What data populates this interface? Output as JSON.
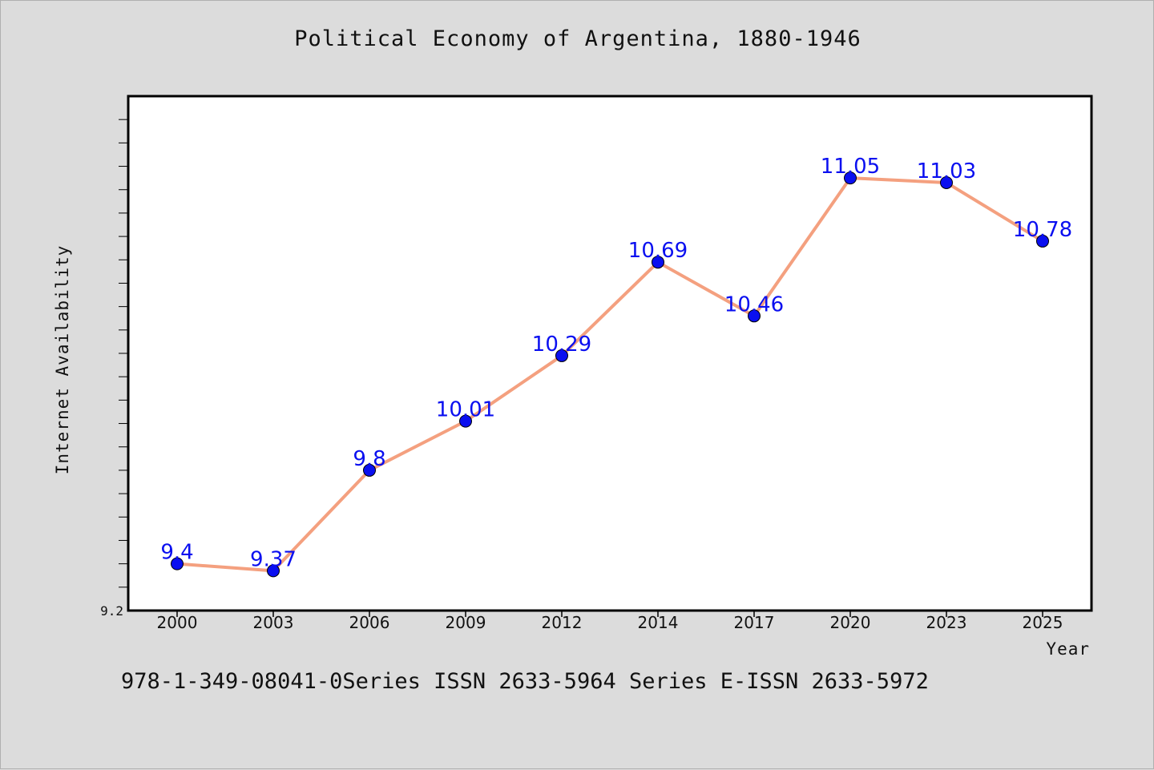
{
  "title": "Political Economy of Argentina, 1880-1946",
  "footer": "978-1-349-08041-0Series ISSN 2633-5964 Series E-ISSN 2633-5972",
  "colors": {
    "line": "#f4a07f",
    "marker": "#0a0ff0",
    "label": "#0a0ff0",
    "plot_bg": "#ffffff",
    "figure_bg": "#dcdcdc"
  },
  "chart_data": {
    "type": "line",
    "title": "Political Economy of Argentina, 1880-1946",
    "xlabel": "Year",
    "ylabel": "Internet Availability",
    "categories": [
      "2000",
      "2003",
      "2006",
      "2009",
      "2012",
      "2014",
      "2017",
      "2020",
      "2023",
      "2025"
    ],
    "series": [
      {
        "values": [
          9.4,
          9.37,
          9.8,
          10.01,
          10.29,
          10.69,
          10.46,
          11.05,
          11.03,
          10.78
        ]
      }
    ],
    "data_labels": [
      "9.4",
      "9.37",
      "9.8",
      "10.01",
      "10.29",
      "10.69",
      "10.46",
      "11.05",
      "11.03",
      "10.78"
    ],
    "ylim": [
      9.2,
      11.4
    ],
    "ytick_labels": [
      "9.2"
    ],
    "grid": false,
    "legend": "none"
  }
}
